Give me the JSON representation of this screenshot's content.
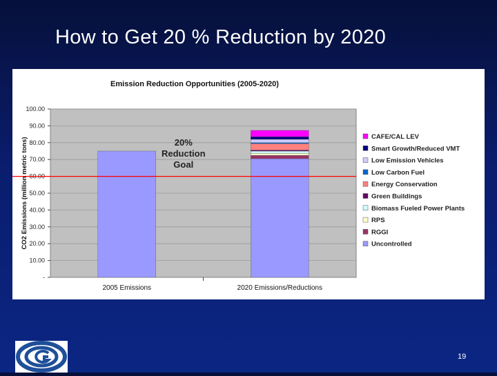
{
  "slide": {
    "title": "How to Get 20 % Reduction by 2020",
    "page_number": "19"
  },
  "colors": {
    "background": "#0a1d6e",
    "text": "#ffffff",
    "plot_area": "#c0c0c0",
    "reference_line": "#ff0000"
  },
  "logo": {
    "icon": "g-circle-logo-icon"
  },
  "chart_data": {
    "type": "bar",
    "stacked": true,
    "title": "Emission Reduction Opportunities (2005-2020)",
    "xlabel": "",
    "ylabel": "CO2 Emissions (million metric tons)",
    "ylim": [
      0,
      100
    ],
    "yticks": [
      {
        "value": 0,
        "label": "-"
      },
      {
        "value": 10,
        "label": "10.00"
      },
      {
        "value": 20,
        "label": "20.00"
      },
      {
        "value": 30,
        "label": "30.00"
      },
      {
        "value": 40,
        "label": "40.00"
      },
      {
        "value": 50,
        "label": "50.00"
      },
      {
        "value": 60,
        "label": "60.00"
      },
      {
        "value": 70,
        "label": "70.00"
      },
      {
        "value": 80,
        "label": "80.00"
      },
      {
        "value": 90,
        "label": "90.00"
      },
      {
        "value": 100,
        "label": "100.00"
      }
    ],
    "grid": true,
    "legend_position": "right",
    "categories": [
      "2005 Emissions",
      "2020 Emissions/Reductions"
    ],
    "series": [
      {
        "name": "Uncontrolled",
        "color": "#9999ff",
        "values": [
          75.0,
          70.5
        ]
      },
      {
        "name": "RGGI",
        "color": "#993366",
        "values": [
          0,
          2.0
        ]
      },
      {
        "name": "RPS",
        "color": "#ffffcc",
        "values": [
          0,
          1.2
        ]
      },
      {
        "name": "Biomass Fueled Power Plants",
        "color": "#ccffff",
        "values": [
          0,
          1.3
        ]
      },
      {
        "name": "Green Buildings",
        "color": "#660066",
        "values": [
          0,
          0.6
        ]
      },
      {
        "name": "Energy Conservation",
        "color": "#ff8080",
        "values": [
          0,
          3.8
        ]
      },
      {
        "name": "Low Carbon Fuel",
        "color": "#0066cc",
        "values": [
          0,
          0.6
        ]
      },
      {
        "name": "Low Emission Vehicles",
        "color": "#ccccff",
        "values": [
          0,
          2.0
        ]
      },
      {
        "name": "Smart Growth/Reduced VMT",
        "color": "#000080",
        "values": [
          0,
          1.5
        ]
      },
      {
        "name": "CAFE/CAL LEV",
        "color": "#ff00ff",
        "values": [
          0,
          3.8
        ]
      }
    ],
    "reference_line": {
      "value": 60
    },
    "annotation": {
      "lines": [
        "20%",
        "Reduction",
        "Goal"
      ]
    }
  }
}
